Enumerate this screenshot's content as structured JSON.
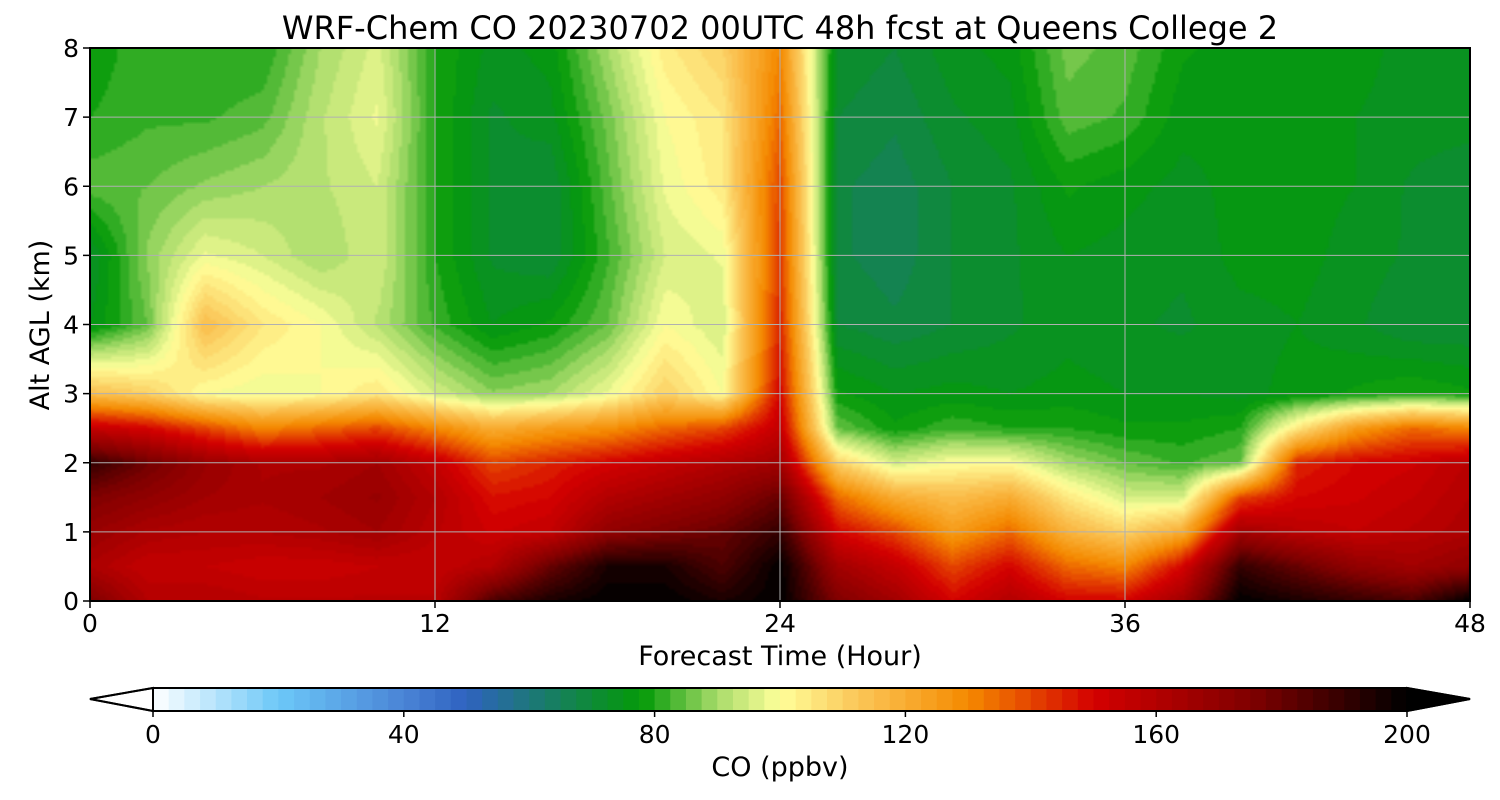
{
  "chart_data": {
    "type": "heatmap",
    "subtype": "filled-contour time-height cross-section",
    "title": "WRF-Chem CO  20230702 00UTC 48h fcst at Queens College 2",
    "xlabel": "Forecast Time (Hour)",
    "ylabel": "Alt AGL (km)",
    "xlim": [
      0,
      48
    ],
    "ylim": [
      0,
      8
    ],
    "xticks": [
      "0",
      "12",
      "24",
      "36",
      "48"
    ],
    "yticks": [
      "0",
      "1",
      "2",
      "3",
      "4",
      "5",
      "6",
      "7",
      "8"
    ],
    "grid": true,
    "x_hours": [
      0,
      2,
      4,
      6,
      8,
      10,
      12,
      14,
      16,
      18,
      20,
      22,
      24,
      26,
      28,
      30,
      32,
      34,
      36,
      38,
      40,
      42,
      44,
      46,
      48
    ],
    "z_km": [
      0,
      0.5,
      1,
      1.5,
      2,
      2.5,
      3,
      4,
      5,
      6,
      7,
      8
    ],
    "co_ppbv": [
      [
        175,
        160,
        160,
        158,
        158,
        158,
        158,
        185,
        195,
        200,
        200,
        195,
        200,
        175,
        165,
        150,
        160,
        150,
        150,
        165,
        200,
        195,
        190,
        185,
        200
      ],
      [
        162,
        155,
        155,
        153,
        153,
        155,
        155,
        160,
        180,
        195,
        195,
        185,
        200,
        165,
        155,
        140,
        150,
        135,
        130,
        150,
        190,
        180,
        170,
        165,
        170
      ],
      [
        168,
        162,
        160,
        160,
        162,
        165,
        158,
        152,
        155,
        170,
        175,
        180,
        190,
        150,
        140,
        125,
        135,
        118,
        110,
        120,
        165,
        158,
        155,
        158,
        162
      ],
      [
        175,
        170,
        165,
        163,
        165,
        168,
        160,
        148,
        150,
        160,
        165,
        170,
        180,
        135,
        120,
        115,
        120,
        105,
        95,
        95,
        140,
        150,
        152,
        155,
        160
      ],
      [
        190,
        178,
        168,
        162,
        162,
        165,
        155,
        140,
        145,
        150,
        155,
        160,
        165,
        110,
        95,
        100,
        100,
        90,
        85,
        82,
        85,
        145,
        150,
        152,
        158
      ],
      [
        155,
        150,
        140,
        130,
        135,
        140,
        130,
        120,
        125,
        128,
        135,
        140,
        155,
        85,
        78,
        82,
        80,
        80,
        78,
        78,
        80,
        105,
        125,
        135,
        130
      ],
      [
        115,
        110,
        100,
        98,
        100,
        105,
        95,
        88,
        90,
        98,
        110,
        100,
        150,
        78,
        75,
        76,
        75,
        76,
        75,
        75,
        74,
        76,
        78,
        80,
        78
      ],
      [
        75,
        85,
        115,
        105,
        100,
        92,
        82,
        75,
        78,
        85,
        100,
        95,
        145,
        70,
        68,
        70,
        72,
        74,
        73,
        72,
        74,
        75,
        73,
        70,
        70
      ],
      [
        72,
        88,
        98,
        95,
        90,
        95,
        80,
        72,
        70,
        82,
        95,
        98,
        142,
        68,
        66,
        70,
        72,
        75,
        74,
        73,
        76,
        76,
        74,
        72,
        70
      ],
      [
        84,
        85,
        88,
        90,
        92,
        95,
        80,
        72,
        70,
        84,
        98,
        104,
        140,
        68,
        66,
        70,
        72,
        78,
        76,
        74,
        76,
        76,
        75,
        72,
        70
      ],
      [
        80,
        82,
        82,
        84,
        92,
        98,
        80,
        72,
        74,
        86,
        100,
        105,
        135,
        70,
        68,
        72,
        74,
        84,
        82,
        76,
        76,
        76,
        75,
        74,
        74
      ],
      [
        78,
        82,
        80,
        80,
        90,
        96,
        80,
        74,
        76,
        90,
        104,
        110,
        130,
        72,
        70,
        74,
        76,
        86,
        84,
        78,
        76,
        76,
        76,
        74,
        74
      ]
    ],
    "colorbar": {
      "label": "CO  (ppbv)",
      "range": [
        0,
        200
      ],
      "ticks": [
        "0",
        "40",
        "80",
        "120",
        "160",
        "200"
      ],
      "extend": "both",
      "orientation": "horizontal",
      "colors": [
        {
          "v": 0,
          "c": "#ffffff"
        },
        {
          "v": 20,
          "c": "#6cc8f8"
        },
        {
          "v": 40,
          "c": "#4a84d6"
        },
        {
          "v": 50,
          "c": "#2f62c0"
        },
        {
          "v": 62,
          "c": "#1a7a6e"
        },
        {
          "v": 72,
          "c": "#0b8f2a"
        },
        {
          "v": 78,
          "c": "#049a08"
        },
        {
          "v": 90,
          "c": "#a8dc6a"
        },
        {
          "v": 100,
          "c": "#ffff9a"
        },
        {
          "v": 112,
          "c": "#fbc85a"
        },
        {
          "v": 130,
          "c": "#f58a00"
        },
        {
          "v": 150,
          "c": "#d40000"
        },
        {
          "v": 175,
          "c": "#800000"
        },
        {
          "v": 200,
          "c": "#000000"
        }
      ]
    }
  }
}
